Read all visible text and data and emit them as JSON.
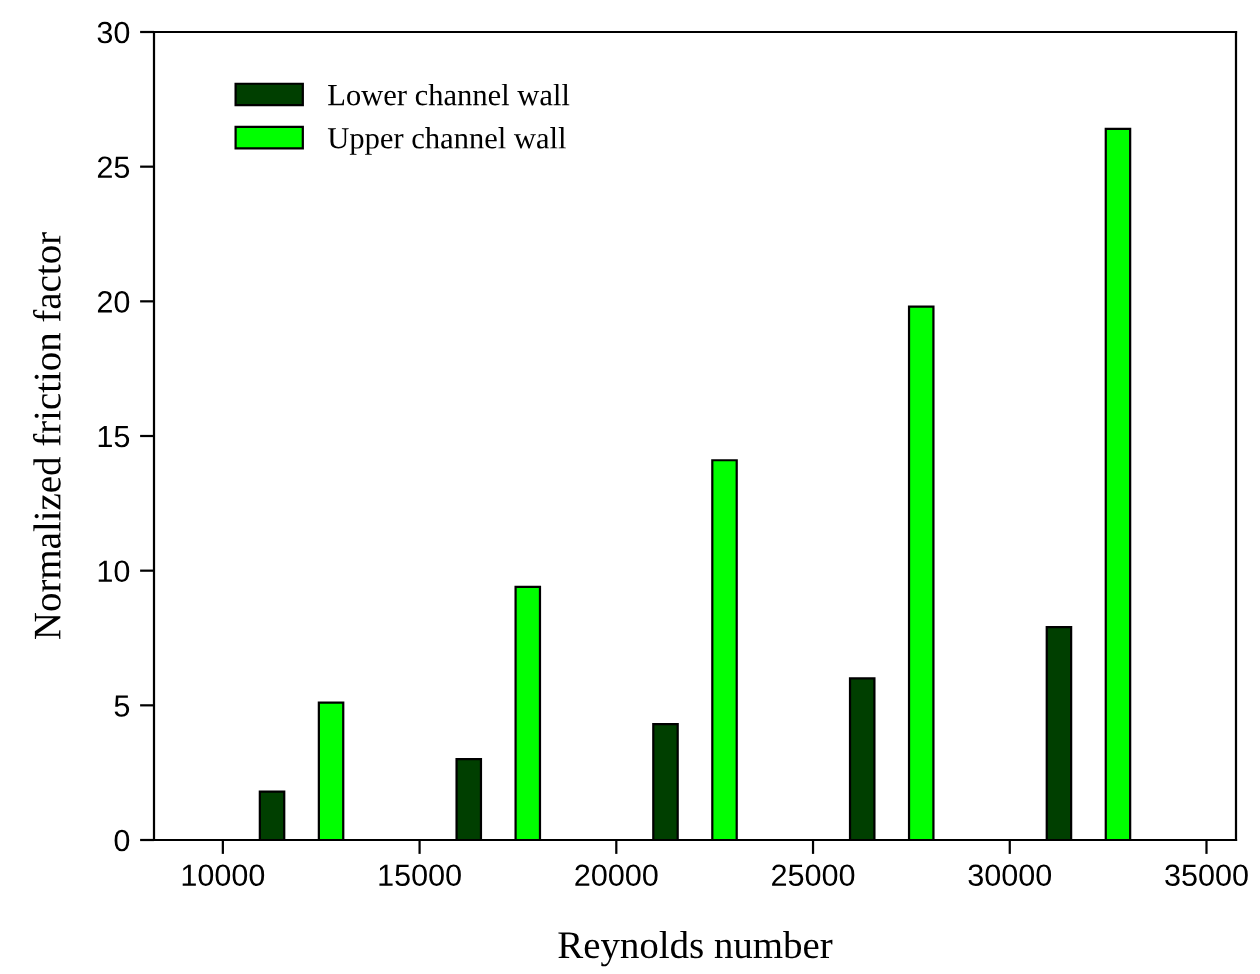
{
  "chart_data": {
    "type": "bar",
    "xlabel": "Reynolds number",
    "ylabel": "Normalized friction factor",
    "series": [
      {
        "name": "Lower channel wall",
        "color": "#003f00",
        "x": [
          11250,
          16250,
          21250,
          26250,
          31250
        ],
        "values": [
          1.8,
          3.0,
          4.3,
          6.0,
          7.9
        ]
      },
      {
        "name": "Upper channel wall",
        "color": "#00ff00",
        "x": [
          12750,
          17750,
          22750,
          27750,
          32750
        ],
        "values": [
          5.1,
          9.4,
          14.1,
          19.8,
          26.4
        ]
      }
    ],
    "xlim": [
      8250,
      35750
    ],
    "xticks": [
      10000,
      15000,
      20000,
      25000,
      30000,
      35000
    ],
    "ylim": [
      0,
      30
    ],
    "yticks": [
      0,
      5,
      10,
      15,
      20,
      25,
      30
    ],
    "grid": false,
    "legend": "top left"
  }
}
